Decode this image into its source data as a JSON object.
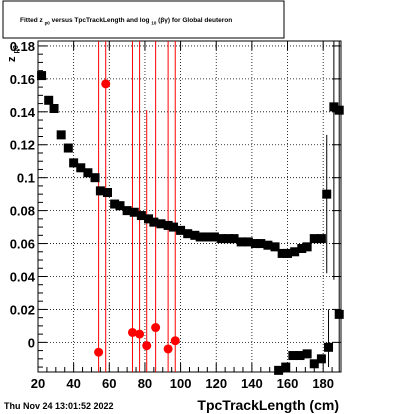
{
  "footer": {
    "timestamp": "Thu Nov 24 13:01:52 2022"
  },
  "chart_data": {
    "type": "scatter",
    "title_parts": {
      "prefix": "Fitted  z",
      "sub": "p0",
      "middle": "  versus TpcTrackLength and log",
      "sub2": "10",
      "suffix": "(βγ) for Global deuteron"
    },
    "xlabel": "TpcTrackLength (cm)",
    "ylabel": "z",
    "ylabel_sub": "p0",
    "xlim": [
      20,
      190
    ],
    "ylim": [
      -0.018,
      0.183
    ],
    "x_ticks": [
      20,
      40,
      60,
      80,
      100,
      120,
      140,
      160,
      180
    ],
    "x_tick_labels": [
      "20",
      "40",
      "60",
      "80",
      "100",
      "120",
      "140",
      "160",
      "180"
    ],
    "y_ticks": [
      0,
      0.02,
      0.04,
      0.06,
      0.08,
      0.1,
      0.12,
      0.14,
      0.16,
      0.18
    ],
    "y_tick_labels": [
      "0",
      "0.02",
      "0.04",
      "0.06",
      "0.08",
      "0.1",
      "0.12",
      "0.14",
      "0.16",
      "0.18"
    ],
    "grid": true,
    "series": [
      {
        "color": "#000000",
        "marker": "square",
        "points": [
          {
            "x": 22,
            "y": 0.162
          },
          {
            "x": 26,
            "y": 0.147
          },
          {
            "x": 29,
            "y": 0.142
          },
          {
            "x": 33,
            "y": 0.126
          },
          {
            "x": 37,
            "y": 0.118
          },
          {
            "x": 40,
            "y": 0.109
          },
          {
            "x": 44,
            "y": 0.106
          },
          {
            "x": 48,
            "y": 0.103
          },
          {
            "x": 52,
            "y": 0.1
          },
          {
            "x": 55,
            "y": 0.092
          },
          {
            "x": 59,
            "y": 0.091
          },
          {
            "x": 63,
            "y": 0.084
          },
          {
            "x": 66,
            "y": 0.083
          },
          {
            "x": 70,
            "y": 0.08
          },
          {
            "x": 74,
            "y": 0.079
          },
          {
            "x": 78,
            "y": 0.077
          },
          {
            "x": 82,
            "y": 0.075
          },
          {
            "x": 85,
            "y": 0.073
          },
          {
            "x": 89,
            "y": 0.072
          },
          {
            "x": 93,
            "y": 0.071
          },
          {
            "x": 96,
            "y": 0.07
          },
          {
            "x": 100,
            "y": 0.068
          },
          {
            "x": 104,
            "y": 0.066
          },
          {
            "x": 108,
            "y": 0.065
          },
          {
            "x": 111,
            "y": 0.064
          },
          {
            "x": 115,
            "y": 0.064
          },
          {
            "x": 119,
            "y": 0.064
          },
          {
            "x": 123,
            "y": 0.063
          },
          {
            "x": 127,
            "y": 0.063
          },
          {
            "x": 130,
            "y": 0.063
          },
          {
            "x": 134,
            "y": 0.061
          },
          {
            "x": 138,
            "y": 0.061
          },
          {
            "x": 142,
            "y": 0.06
          },
          {
            "x": 145,
            "y": 0.06
          },
          {
            "x": 149,
            "y": 0.059
          },
          {
            "x": 153,
            "y": 0.058
          },
          {
            "x": 157,
            "y": 0.054
          },
          {
            "x": 160,
            "y": 0.054
          },
          {
            "x": 164,
            "y": 0.055
          },
          {
            "x": 168,
            "y": 0.057
          },
          {
            "x": 171,
            "y": 0.058
          },
          {
            "x": 175,
            "y": 0.063
          },
          {
            "x": 179,
            "y": 0.063
          },
          {
            "x": 182,
            "y": 0.09
          },
          {
            "x": 186,
            "y": 0.143
          },
          {
            "x": 189,
            "y": 0.141
          },
          {
            "x": 155,
            "y": -0.017
          },
          {
            "x": 159,
            "y": -0.015
          },
          {
            "x": 163,
            "y": -0.008
          },
          {
            "x": 167,
            "y": -0.008
          },
          {
            "x": 171,
            "y": -0.007
          },
          {
            "x": 175,
            "y": -0.013
          },
          {
            "x": 179,
            "y": -0.01
          },
          {
            "x": 183,
            "y": -0.003
          },
          {
            "x": 189,
            "y": 0.017
          }
        ]
      },
      {
        "color": "#ff0000",
        "marker": "circle",
        "points": [
          {
            "x": 54,
            "y": -0.006
          },
          {
            "x": 58,
            "y": 0.157
          },
          {
            "x": 73,
            "y": 0.006
          },
          {
            "x": 77,
            "y": 0.005
          },
          {
            "x": 81,
            "y": -0.002
          },
          {
            "x": 86,
            "y": 0.009
          },
          {
            "x": 93,
            "y": -0.004
          },
          {
            "x": 97,
            "y": 0.001
          }
        ]
      }
    ],
    "black_error_bars": [
      {
        "x": 182,
        "y_low": 0.042,
        "y_high": 0.126
      },
      {
        "x": 186,
        "y_low": 0.038,
        "y_high": 0.183
      },
      {
        "x": 189,
        "y_low": -0.018,
        "y_high": 0.183
      },
      {
        "x": 183,
        "y_low": -0.015,
        "y_high": 0.02
      }
    ],
    "red_error_bars": [
      {
        "x": 54,
        "y_low": -0.018,
        "y_high": 0.183
      },
      {
        "x": 58,
        "y_low": -0.018,
        "y_high": 0.183
      },
      {
        "x": 73,
        "y_low": -0.018,
        "y_high": 0.183
      },
      {
        "x": 77,
        "y_low": -0.018,
        "y_high": 0.183
      },
      {
        "x": 81,
        "y_low": -0.018,
        "y_high": 0.141
      },
      {
        "x": 86,
        "y_low": -0.018,
        "y_high": 0.183
      },
      {
        "x": 93,
        "y_low": -0.018,
        "y_high": 0.183
      },
      {
        "x": 97,
        "y_low": -0.018,
        "y_high": 0.183
      }
    ]
  }
}
